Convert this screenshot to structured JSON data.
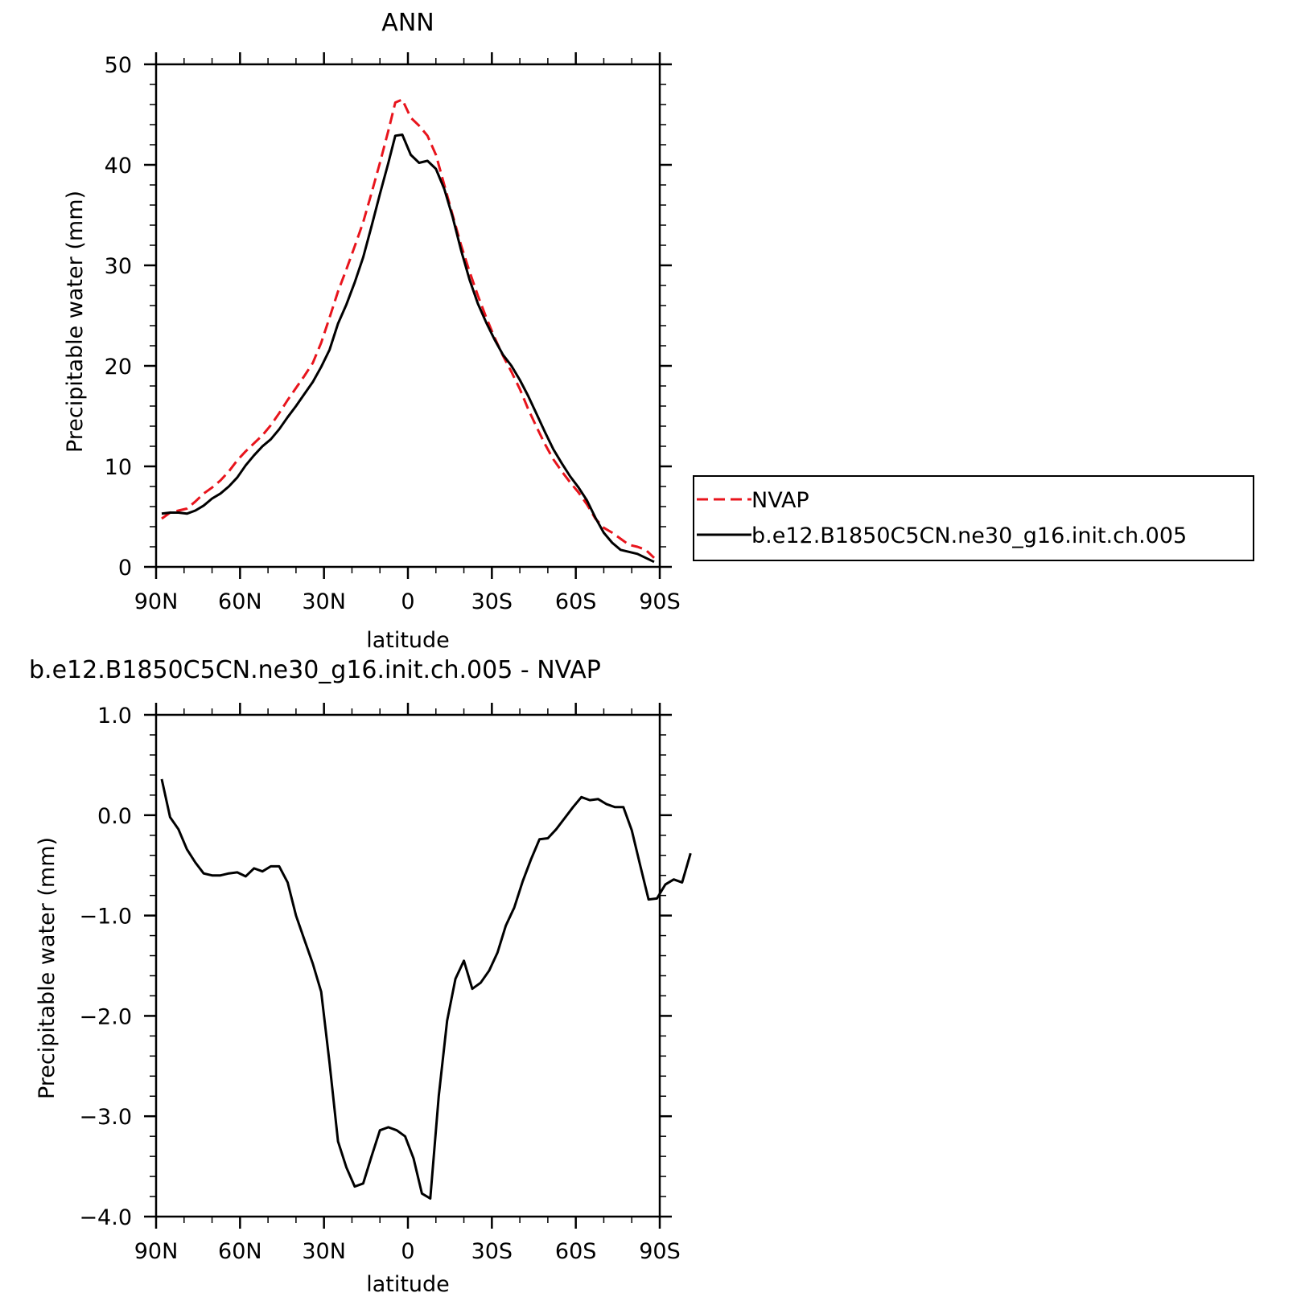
{
  "chart_data": [
    {
      "type": "line",
      "title": "ANN",
      "xlabel": "latitude",
      "ylabel": "Precipitable water (mm)",
      "xlim": [
        90,
        -90
      ],
      "ylim": [
        0,
        50
      ],
      "x_tick_values": [
        90,
        60,
        30,
        0,
        -30,
        -60,
        -90
      ],
      "x_tick_labels": [
        "90N",
        "60N",
        "30N",
        "0",
        "30S",
        "60S",
        "90S"
      ],
      "y_tick_values": [
        0,
        10,
        20,
        30,
        40,
        50
      ],
      "y_tick_labels": [
        "0",
        "10",
        "20",
        "30",
        "40",
        "50"
      ],
      "legend_position": "right, outside plot",
      "series": [
        {
          "name": "NVAP",
          "color": "#e8141c",
          "style": "dashed",
          "points": [
            [
              88,
              4.8
            ],
            [
              85,
              5.4
            ],
            [
              82,
              5.6
            ],
            [
              79,
              5.8
            ],
            [
              76,
              6.5
            ],
            [
              73,
              7.3
            ],
            [
              70,
              7.9
            ],
            [
              67,
              8.6
            ],
            [
              64,
              9.5
            ],
            [
              61,
              10.6
            ],
            [
              58,
              11.5
            ],
            [
              55,
              12.3
            ],
            [
              52,
              13.1
            ],
            [
              49,
              14.1
            ],
            [
              46,
              15.3
            ],
            [
              43,
              16.6
            ],
            [
              40,
              17.8
            ],
            [
              37,
              19.0
            ],
            [
              34,
              20.3
            ],
            [
              31,
              22.3
            ],
            [
              28,
              24.8
            ],
            [
              25,
              27.4
            ],
            [
              22,
              29.6
            ],
            [
              19,
              31.9
            ],
            [
              16,
              34.3
            ],
            [
              13,
              37.2
            ],
            [
              10,
              40.2
            ],
            [
              7,
              43.4
            ],
            [
              4.5,
              46.2
            ],
            [
              2,
              46.5
            ],
            [
              -1,
              44.7
            ],
            [
              -4,
              43.9
            ],
            [
              -7,
              42.9
            ],
            [
              -10,
              41.0
            ],
            [
              -13,
              38.0
            ],
            [
              -16,
              35.0
            ],
            [
              -19,
              32.0
            ],
            [
              -22,
              29.4
            ],
            [
              -25,
              27.0
            ],
            [
              -28,
              24.8
            ],
            [
              -31,
              22.8
            ],
            [
              -34,
              21.0
            ],
            [
              -37,
              19.4
            ],
            [
              -40,
              17.7
            ],
            [
              -43,
              15.7
            ],
            [
              -46,
              13.9
            ],
            [
              -49,
              12.2
            ],
            [
              -52,
              10.7
            ],
            [
              -55,
              9.5
            ],
            [
              -58,
              8.4
            ],
            [
              -61,
              7.4
            ],
            [
              -64,
              6.2
            ],
            [
              -67,
              4.8
            ],
            [
              -70,
              3.9
            ],
            [
              -73,
              3.4
            ],
            [
              -76,
              2.8
            ],
            [
              -79,
              2.2
            ],
            [
              -82,
              2.0
            ],
            [
              -85,
              1.7
            ],
            [
              -88,
              0.9
            ]
          ]
        },
        {
          "name": "b.e12.B1850C5CN.ne30_g16.init.ch.005",
          "color": "#000000",
          "style": "solid",
          "points": [
            [
              88,
              5.3
            ],
            [
              85,
              5.4
            ],
            [
              82,
              5.4
            ],
            [
              79,
              5.3
            ],
            [
              76,
              5.6
            ],
            [
              73,
              6.1
            ],
            [
              70,
              6.8
            ],
            [
              67,
              7.3
            ],
            [
              64,
              8.0
            ],
            [
              61,
              8.9
            ],
            [
              58,
              10.1
            ],
            [
              55,
              11.1
            ],
            [
              52,
              12.0
            ],
            [
              49,
              12.7
            ],
            [
              46,
              13.7
            ],
            [
              43,
              14.9
            ],
            [
              40,
              16.0
            ],
            [
              37,
              17.2
            ],
            [
              34,
              18.4
            ],
            [
              31,
              19.9
            ],
            [
              28,
              21.6
            ],
            [
              25,
              24.2
            ],
            [
              22,
              26.1
            ],
            [
              19,
              28.3
            ],
            [
              16,
              30.8
            ],
            [
              13,
              33.9
            ],
            [
              10,
              37.1
            ],
            [
              7,
              40.2
            ],
            [
              4.5,
              42.9
            ],
            [
              2,
              43.0
            ],
            [
              -1,
              41.0
            ],
            [
              -4,
              40.2
            ],
            [
              -7,
              40.4
            ],
            [
              -10,
              39.6
            ],
            [
              -13,
              37.6
            ],
            [
              -16,
              34.8
            ],
            [
              -19,
              31.5
            ],
            [
              -22,
              28.6
            ],
            [
              -25,
              26.2
            ],
            [
              -28,
              24.3
            ],
            [
              -31,
              22.6
            ],
            [
              -34,
              21.1
            ],
            [
              -37,
              20.0
            ],
            [
              -40,
              18.6
            ],
            [
              -43,
              17.0
            ],
            [
              -46,
              15.2
            ],
            [
              -49,
              13.4
            ],
            [
              -52,
              11.7
            ],
            [
              -55,
              10.3
            ],
            [
              -58,
              9.0
            ],
            [
              -61,
              7.9
            ],
            [
              -64,
              6.6
            ],
            [
              -67,
              4.9
            ],
            [
              -70,
              3.4
            ],
            [
              -73,
              2.4
            ],
            [
              -76,
              1.7
            ],
            [
              -79,
              1.5
            ],
            [
              -82,
              1.3
            ],
            [
              -85,
              0.9
            ],
            [
              -88,
              0.5
            ]
          ]
        }
      ]
    },
    {
      "type": "line",
      "title": "b.e12.B1850C5CN.ne30_g16.init.ch.005 - NVAP",
      "xlabel": "latitude",
      "ylabel": "Precipitable water (mm)",
      "xlim": [
        90,
        -90
      ],
      "ylim": [
        -4.0,
        1.0
      ],
      "x_tick_values": [
        90,
        60,
        30,
        0,
        -30,
        -60,
        -90
      ],
      "x_tick_labels": [
        "90N",
        "60N",
        "30N",
        "0",
        "30S",
        "60S",
        "90S"
      ],
      "y_tick_values": [
        1.0,
        0.0,
        -1.0,
        -2.0,
        -3.0,
        -4.0
      ],
      "y_tick_labels": [
        "1.0",
        "0.0",
        "−1.0",
        "−2.0",
        "−3.0",
        "−4.0"
      ],
      "series": [
        {
          "color": "#000000",
          "style": "solid",
          "points": [
            [
              88,
              0.36
            ],
            [
              85,
              -0.02
            ],
            [
              82,
              -0.14
            ],
            [
              79,
              -0.34
            ],
            [
              76,
              -0.47
            ],
            [
              73,
              -0.58
            ],
            [
              70,
              -0.6
            ],
            [
              67,
              -0.6
            ],
            [
              64,
              -0.58
            ],
            [
              61,
              -0.57
            ],
            [
              58,
              -0.61
            ],
            [
              55,
              -0.53
            ],
            [
              52,
              -0.56
            ],
            [
              49,
              -0.51
            ],
            [
              46,
              -0.51
            ],
            [
              43,
              -0.67
            ],
            [
              40,
              -1.0
            ],
            [
              37,
              -1.24
            ],
            [
              34,
              -1.48
            ],
            [
              31,
              -1.76
            ],
            [
              28,
              -2.47
            ],
            [
              25,
              -3.25
            ],
            [
              22,
              -3.51
            ],
            [
              19,
              -3.7
            ],
            [
              16,
              -3.67
            ],
            [
              13,
              -3.4
            ],
            [
              10,
              -3.14
            ],
            [
              7,
              -3.11
            ],
            [
              4,
              -3.14
            ],
            [
              1,
              -3.2
            ],
            [
              -2,
              -3.42
            ],
            [
              -5,
              -3.77
            ],
            [
              -8,
              -3.82
            ],
            [
              -11,
              -2.8
            ],
            [
              -14,
              -2.05
            ],
            [
              -17,
              -1.63
            ],
            [
              -20,
              -1.45
            ],
            [
              -23,
              -1.73
            ],
            [
              -26,
              -1.67
            ],
            [
              -29,
              -1.55
            ],
            [
              -32,
              -1.37
            ],
            [
              -35,
              -1.1
            ],
            [
              -38,
              -0.92
            ],
            [
              -41,
              -0.66
            ],
            [
              -44,
              -0.44
            ],
            [
              -47,
              -0.24
            ],
            [
              -50,
              -0.23
            ],
            [
              -53,
              -0.14
            ],
            [
              -56,
              -0.03
            ],
            [
              -59,
              0.08
            ],
            [
              -62,
              0.18
            ],
            [
              -65,
              0.15
            ],
            [
              -68,
              0.16
            ],
            [
              -71,
              0.11
            ],
            [
              -74,
              0.08
            ],
            [
              -77,
              0.08
            ],
            [
              -80,
              -0.15
            ],
            [
              -83,
              -0.5
            ],
            [
              -86,
              -0.84
            ],
            [
              -89,
              -0.83
            ],
            [
              -92,
              -0.69
            ],
            [
              -95,
              -0.64
            ],
            [
              -98,
              -0.67
            ],
            [
              -101,
              -0.38
            ]
          ]
        }
      ]
    }
  ]
}
